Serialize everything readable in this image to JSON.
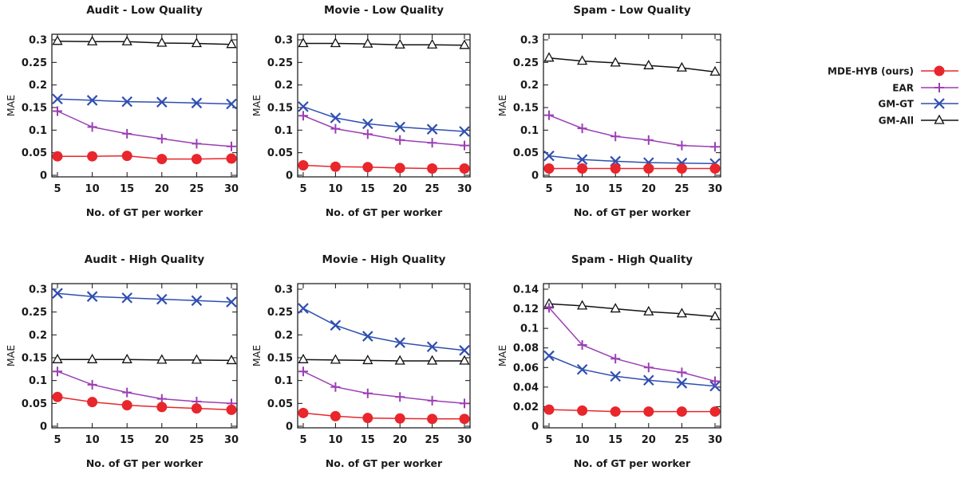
{
  "series_styles": [
    {
      "name": "MDE-HYB (ours)",
      "color": "#e8262b",
      "marker": "filled-circle"
    },
    {
      "name": "EAR",
      "color": "#9b3fb5",
      "marker": "plus"
    },
    {
      "name": "GM-GT",
      "color": "#2f4fb0",
      "marker": "cross"
    },
    {
      "name": "GM-All",
      "color": "#111111",
      "marker": "open-triangle"
    }
  ],
  "chart_data": [
    {
      "type": "line",
      "title": "Audit - Low Quality",
      "xlabel": "No. of GT per worker",
      "ylabel": "MAE",
      "x": [
        5,
        10,
        15,
        20,
        25,
        30
      ],
      "xlim": [
        5,
        30
      ],
      "ylim": [
        0,
        0.3
      ],
      "yticks": [
        0,
        0.05,
        0.1,
        0.15,
        0.2,
        0.25,
        0.3
      ],
      "ytick_labels": [
        "0",
        "0.05",
        "0.1",
        "0.15",
        "0.2",
        "0.25",
        "0.3"
      ],
      "series": [
        {
          "name": "MDE-HYB (ours)",
          "values": [
            0.042,
            0.042,
            0.043,
            0.036,
            0.036,
            0.037
          ]
        },
        {
          "name": "EAR",
          "values": [
            0.142,
            0.107,
            0.092,
            0.081,
            0.07,
            0.064
          ]
        },
        {
          "name": "GM-GT",
          "values": [
            0.169,
            0.166,
            0.163,
            0.162,
            0.16,
            0.158
          ]
        },
        {
          "name": "GM-All",
          "values": [
            0.297,
            0.296,
            0.296,
            0.293,
            0.292,
            0.29
          ]
        }
      ]
    },
    {
      "type": "line",
      "title": "Movie - Low Quality",
      "xlabel": "No. of GT per worker",
      "ylabel": "MAE",
      "x": [
        5,
        10,
        15,
        20,
        25,
        30
      ],
      "xlim": [
        5,
        30
      ],
      "ylim": [
        0,
        0.3
      ],
      "yticks": [
        0,
        0.05,
        0.1,
        0.15,
        0.2,
        0.25,
        0.3
      ],
      "ytick_labels": [
        "0",
        "0.05",
        "0.1",
        "0.15",
        "0.2",
        "0.25",
        "0.3"
      ],
      "series": [
        {
          "name": "MDE-HYB (ours)",
          "values": [
            0.022,
            0.019,
            0.018,
            0.016,
            0.015,
            0.015
          ]
        },
        {
          "name": "EAR",
          "values": [
            0.132,
            0.103,
            0.091,
            0.078,
            0.072,
            0.066
          ]
        },
        {
          "name": "GM-GT",
          "values": [
            0.152,
            0.127,
            0.114,
            0.107,
            0.102,
            0.097
          ]
        },
        {
          "name": "GM-All",
          "values": [
            0.292,
            0.292,
            0.291,
            0.289,
            0.289,
            0.288
          ]
        }
      ]
    },
    {
      "type": "line",
      "title": "Spam - Low Quality",
      "xlabel": "No. of GT per worker",
      "ylabel": "MAE",
      "x": [
        5,
        10,
        15,
        20,
        25,
        30
      ],
      "xlim": [
        5,
        30
      ],
      "ylim": [
        0,
        0.3
      ],
      "yticks": [
        0,
        0.05,
        0.1,
        0.15,
        0.2,
        0.25,
        0.3
      ],
      "ytick_labels": [
        "0",
        "0.05",
        "0.1",
        "0.15",
        "0.2",
        "0.25",
        "0.3"
      ],
      "series": [
        {
          "name": "MDE-HYB (ours)",
          "values": [
            0.015,
            0.015,
            0.015,
            0.015,
            0.015,
            0.015
          ]
        },
        {
          "name": "EAR",
          "values": [
            0.133,
            0.104,
            0.086,
            0.078,
            0.066,
            0.063
          ]
        },
        {
          "name": "GM-GT",
          "values": [
            0.043,
            0.035,
            0.031,
            0.028,
            0.027,
            0.026
          ]
        },
        {
          "name": "GM-All",
          "values": [
            0.26,
            0.253,
            0.249,
            0.243,
            0.238,
            0.229
          ]
        }
      ]
    },
    {
      "type": "line",
      "title": "Audit - High Quality",
      "xlabel": "No. of GT per worker",
      "ylabel": "MAE",
      "x": [
        5,
        10,
        15,
        20,
        25,
        30
      ],
      "xlim": [
        5,
        30
      ],
      "ylim": [
        0,
        0.3
      ],
      "yticks": [
        0,
        0.05,
        0.1,
        0.15,
        0.2,
        0.25,
        0.3
      ],
      "ytick_labels": [
        "0",
        "0.05",
        "0.1",
        "0.15",
        "0.2",
        "0.25",
        "0.3"
      ],
      "series": [
        {
          "name": "MDE-HYB (ours)",
          "values": [
            0.064,
            0.053,
            0.046,
            0.042,
            0.039,
            0.036
          ]
        },
        {
          "name": "EAR",
          "values": [
            0.12,
            0.091,
            0.074,
            0.06,
            0.054,
            0.05
          ]
        },
        {
          "name": "GM-GT",
          "values": [
            0.291,
            0.284,
            0.281,
            0.278,
            0.275,
            0.272
          ]
        },
        {
          "name": "GM-All",
          "values": [
            0.146,
            0.146,
            0.146,
            0.145,
            0.145,
            0.144
          ]
        }
      ]
    },
    {
      "type": "line",
      "title": "Movie - High Quality",
      "xlabel": "No. of GT per worker",
      "ylabel": "MAE",
      "x": [
        5,
        10,
        15,
        20,
        25,
        30
      ],
      "xlim": [
        5,
        30
      ],
      "ylim": [
        0,
        0.3
      ],
      "yticks": [
        0,
        0.05,
        0.1,
        0.15,
        0.2,
        0.25,
        0.3
      ],
      "ytick_labels": [
        "0",
        "0.05",
        "0.1",
        "0.15",
        "0.2",
        "0.25",
        "0.3"
      ],
      "series": [
        {
          "name": "MDE-HYB (ours)",
          "values": [
            0.029,
            0.022,
            0.018,
            0.017,
            0.016,
            0.016
          ]
        },
        {
          "name": "EAR",
          "values": [
            0.12,
            0.086,
            0.072,
            0.064,
            0.056,
            0.05
          ]
        },
        {
          "name": "GM-GT",
          "values": [
            0.258,
            0.221,
            0.197,
            0.183,
            0.174,
            0.166
          ]
        },
        {
          "name": "GM-All",
          "values": [
            0.146,
            0.145,
            0.144,
            0.143,
            0.143,
            0.143
          ]
        }
      ]
    },
    {
      "type": "line",
      "title": "Spam - High Quality",
      "xlabel": "No. of GT per worker",
      "ylabel": "MAE",
      "x": [
        5,
        10,
        15,
        20,
        25,
        30
      ],
      "xlim": [
        5,
        30
      ],
      "ylim": [
        0,
        0.14
      ],
      "yticks": [
        0,
        0.02,
        0.04,
        0.06,
        0.08,
        0.1,
        0.12,
        0.14
      ],
      "ytick_labels": [
        "0",
        "0.02",
        "0.04",
        "0.06",
        "0.08",
        "0.1",
        "0.12",
        "0.14"
      ],
      "series": [
        {
          "name": "MDE-HYB (ours)",
          "values": [
            0.017,
            0.016,
            0.015,
            0.015,
            0.015,
            0.015
          ]
        },
        {
          "name": "EAR",
          "values": [
            0.121,
            0.083,
            0.069,
            0.06,
            0.055,
            0.046
          ]
        },
        {
          "name": "GM-GT",
          "values": [
            0.072,
            0.058,
            0.051,
            0.047,
            0.044,
            0.041
          ]
        },
        {
          "name": "GM-All",
          "values": [
            0.125,
            0.123,
            0.12,
            0.117,
            0.115,
            0.112
          ]
        }
      ]
    }
  ]
}
